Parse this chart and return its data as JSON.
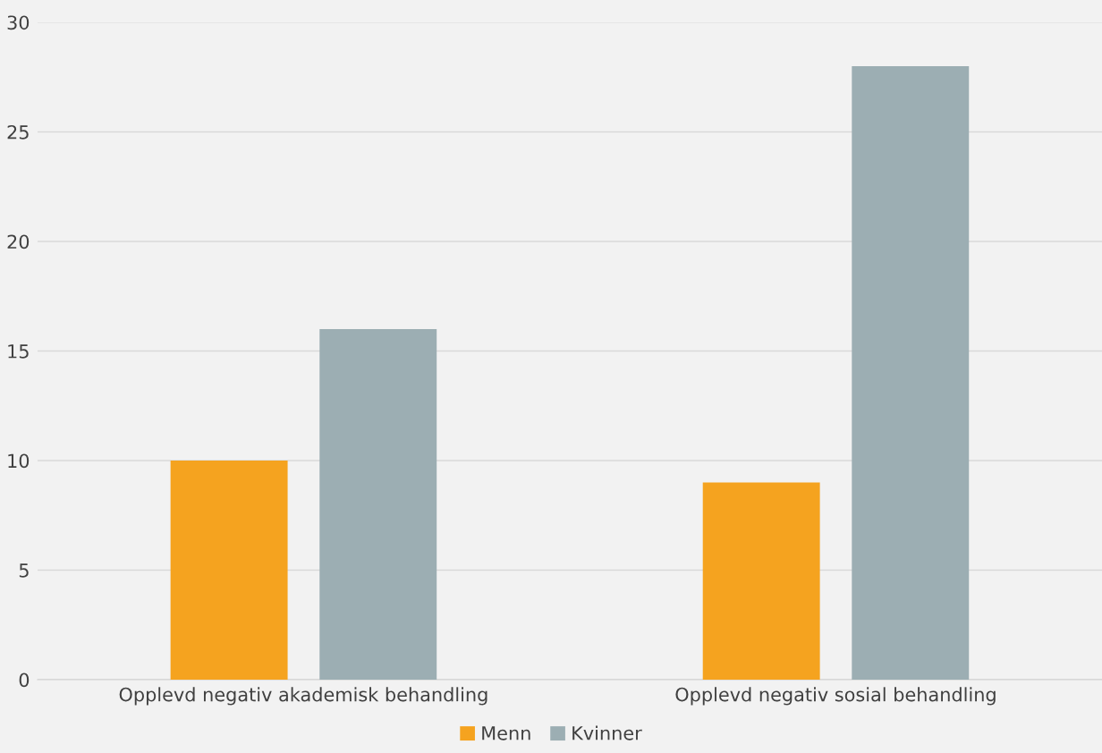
{
  "chart_data": {
    "type": "bar",
    "categories": [
      "Opplevd negativ akademisk behandling",
      "Opplevd negativ sosial behandling"
    ],
    "series": [
      {
        "name": "Menn",
        "color": "#f5a31f",
        "values": [
          10,
          9
        ]
      },
      {
        "name": "Kvinner",
        "color": "#9caeb3",
        "values": [
          16,
          28
        ]
      }
    ],
    "ylim": [
      0,
      30
    ],
    "yticks": [
      0,
      5,
      10,
      15,
      20,
      25,
      30
    ],
    "grid": "y",
    "legend": "bottom"
  }
}
